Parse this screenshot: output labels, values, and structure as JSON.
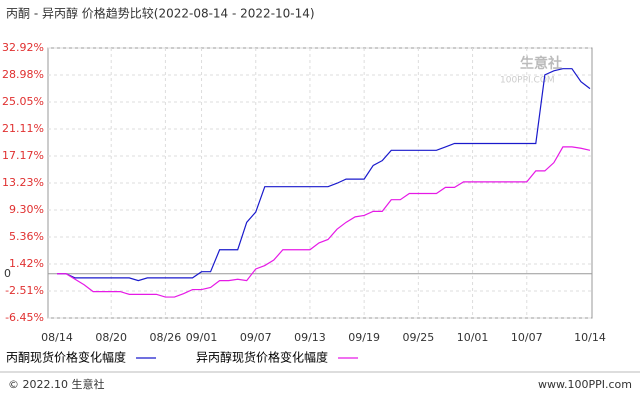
{
  "chart_data": {
    "type": "line",
    "title": "丙酮 - 异丙醇 价格趋势比较(2022-08-14 - 2022-10-14)",
    "categories": [
      "08/14",
      null,
      null,
      null,
      null,
      null,
      "08/20",
      null,
      null,
      null,
      null,
      null,
      "08/26",
      null,
      null,
      null,
      "09/01",
      null,
      null,
      null,
      null,
      null,
      "09/07",
      null,
      null,
      null,
      null,
      null,
      "09/13",
      null,
      null,
      null,
      null,
      null,
      "09/19",
      null,
      null,
      null,
      null,
      null,
      "09/25",
      null,
      null,
      null,
      null,
      null,
      "10/01",
      null,
      null,
      null,
      null,
      null,
      "10/07",
      null,
      null,
      null,
      null,
      null,
      null,
      "10/14"
    ],
    "series": [
      {
        "name": "丙酮现货价格变化幅度",
        "color": "#1a1acc",
        "values": [
          0,
          0,
          -0.6,
          -0.6,
          -0.6,
          -0.6,
          -0.6,
          -0.6,
          -0.6,
          -1.0,
          -0.6,
          -0.6,
          -0.6,
          -0.6,
          -0.6,
          -0.6,
          0.3,
          0.3,
          3.5,
          3.5,
          3.5,
          7.5,
          9,
          12.7,
          12.7,
          12.7,
          12.7,
          12.7,
          12.7,
          12.7,
          12.7,
          13.2,
          13.8,
          13.8,
          13.8,
          15.8,
          16.5,
          18,
          18,
          18,
          18,
          18,
          18,
          18.5,
          19,
          19,
          19,
          19,
          19,
          19,
          19,
          19,
          19,
          19,
          29,
          29.6,
          29.9,
          29.9,
          28,
          27
        ]
      },
      {
        "name": "异丙醇现货价格变化幅度",
        "color": "#e61ae6",
        "values": [
          0,
          0,
          -0.8,
          -1.6,
          -2.6,
          -2.6,
          -2.6,
          -2.6,
          -3.0,
          -3.0,
          -3.0,
          -3.0,
          -3.4,
          -3.4,
          -2.9,
          -2.3,
          -2.3,
          -2.0,
          -1.0,
          -1.0,
          -0.8,
          -1.0,
          0.7,
          1.2,
          2.0,
          3.5,
          3.5,
          3.5,
          3.5,
          4.5,
          5.0,
          6.5,
          7.5,
          8.3,
          8.5,
          9.1,
          9.1,
          10.8,
          10.8,
          11.7,
          11.7,
          11.7,
          11.7,
          12.6,
          12.6,
          13.4,
          13.4,
          13.4,
          13.4,
          13.4,
          13.4,
          13.4,
          13.4,
          15,
          15,
          16.2,
          18.5,
          18.5,
          18.3,
          18
        ]
      }
    ],
    "ylim": [
      -6.45,
      32.92
    ],
    "yticks": [
      {
        "value": 32.92,
        "label": "32.92%"
      },
      {
        "value": 28.98,
        "label": "28.98%"
      },
      {
        "value": 25.05,
        "label": "25.05%"
      },
      {
        "value": 21.11,
        "label": "21.11%"
      },
      {
        "value": 17.17,
        "label": "17.17%"
      },
      {
        "value": 13.23,
        "label": "13.23%"
      },
      {
        "value": 9.3,
        "label": "9.30%"
      },
      {
        "value": 5.36,
        "label": "5.36%"
      },
      {
        "value": 1.42,
        "label": "1.42%"
      },
      0,
      {
        "value": -2.51,
        "label": "-2.51%"
      },
      {
        "value": -6.45,
        "label": "-6.45%"
      }
    ],
    "grid": true,
    "watermark": {
      "name": "生意社",
      "url": "100PPI.COM"
    },
    "footer": {
      "left": "© 2022.10 生意社",
      "right": "www.100PPI.com"
    }
  }
}
